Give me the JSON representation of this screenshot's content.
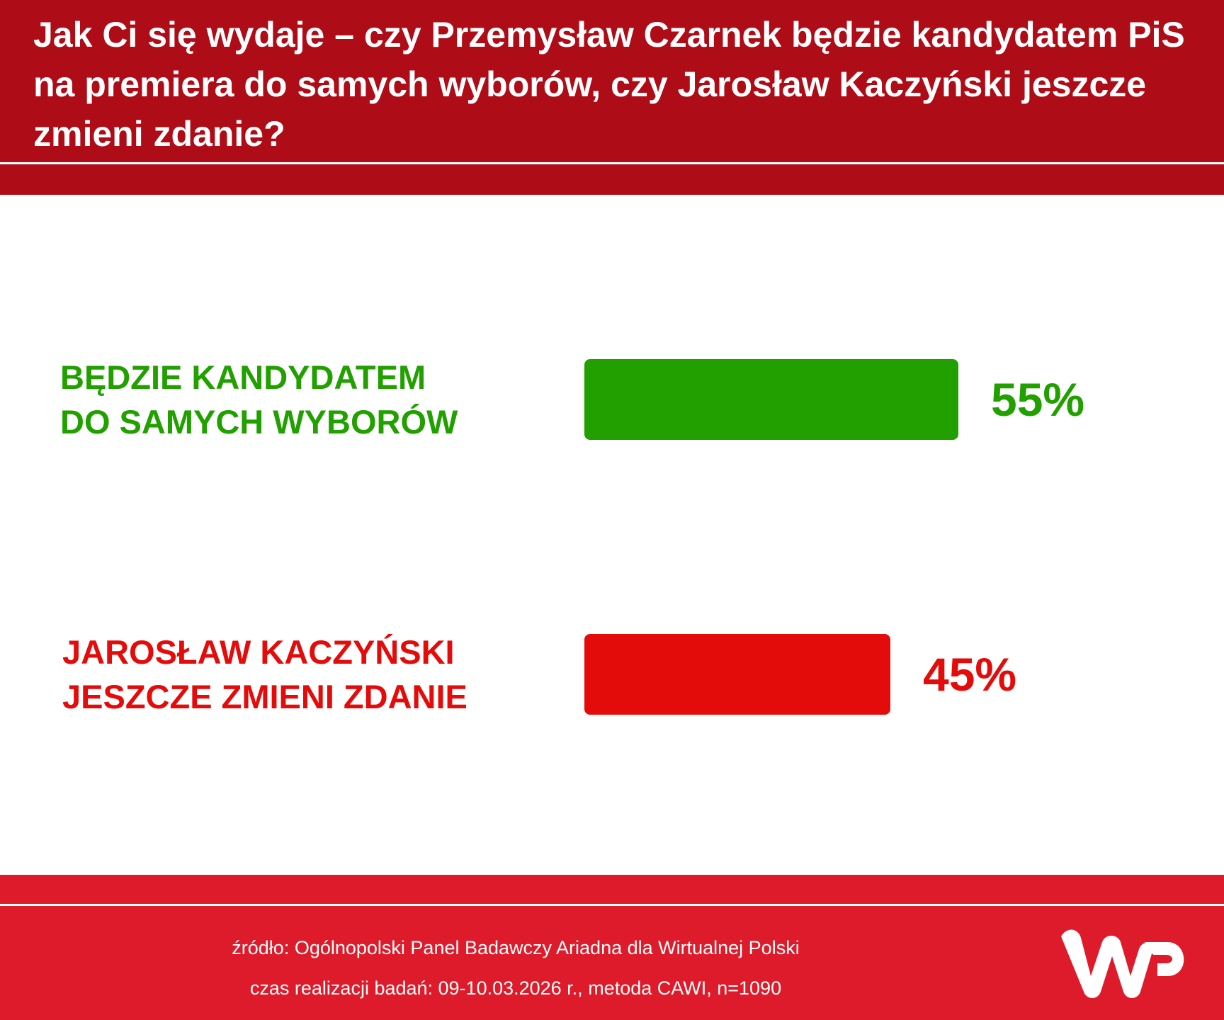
{
  "header": {
    "title": "Jak Ci się wydaje – czy Przemysław Czarnek będzie kandydatem PiS na premiera do samych wyborów, czy Jarosław Kaczyński jeszcze zmieni zdanie?"
  },
  "colors": {
    "header_bg": "#ae0c17",
    "footer_bg": "#de1b2a",
    "green": "#21a000",
    "red": "#e40b0b"
  },
  "chart_data": {
    "type": "bar",
    "orientation": "horizontal",
    "categories": [
      "BĘDZIE KANDYDATEM\nDO SAMYCH WYBORÓW",
      "JAROSŁAW KACZYŃSKI\nJESZCZE ZMIENI ZDANIE"
    ],
    "values": [
      55,
      45
    ],
    "value_labels": [
      "55%",
      "45%"
    ],
    "bar_colors": [
      "#21a000",
      "#e40b0b"
    ],
    "title": "Jak Ci się wydaje – czy Przemysław Czarnek będzie kandydatem PiS na premiera do samych wyborów, czy Jarosław Kaczyński jeszcze zmieni zdanie?",
    "xlabel": "",
    "ylabel": "",
    "grid": false
  },
  "footer": {
    "source": "źródło: Ogólnopolski Panel Badawczy Ariadna dla Wirtualnej Polski",
    "method": "czas realizacji badań: 09-10.03.2026 r., metoda CAWI, n=1090",
    "logo": "WP"
  }
}
